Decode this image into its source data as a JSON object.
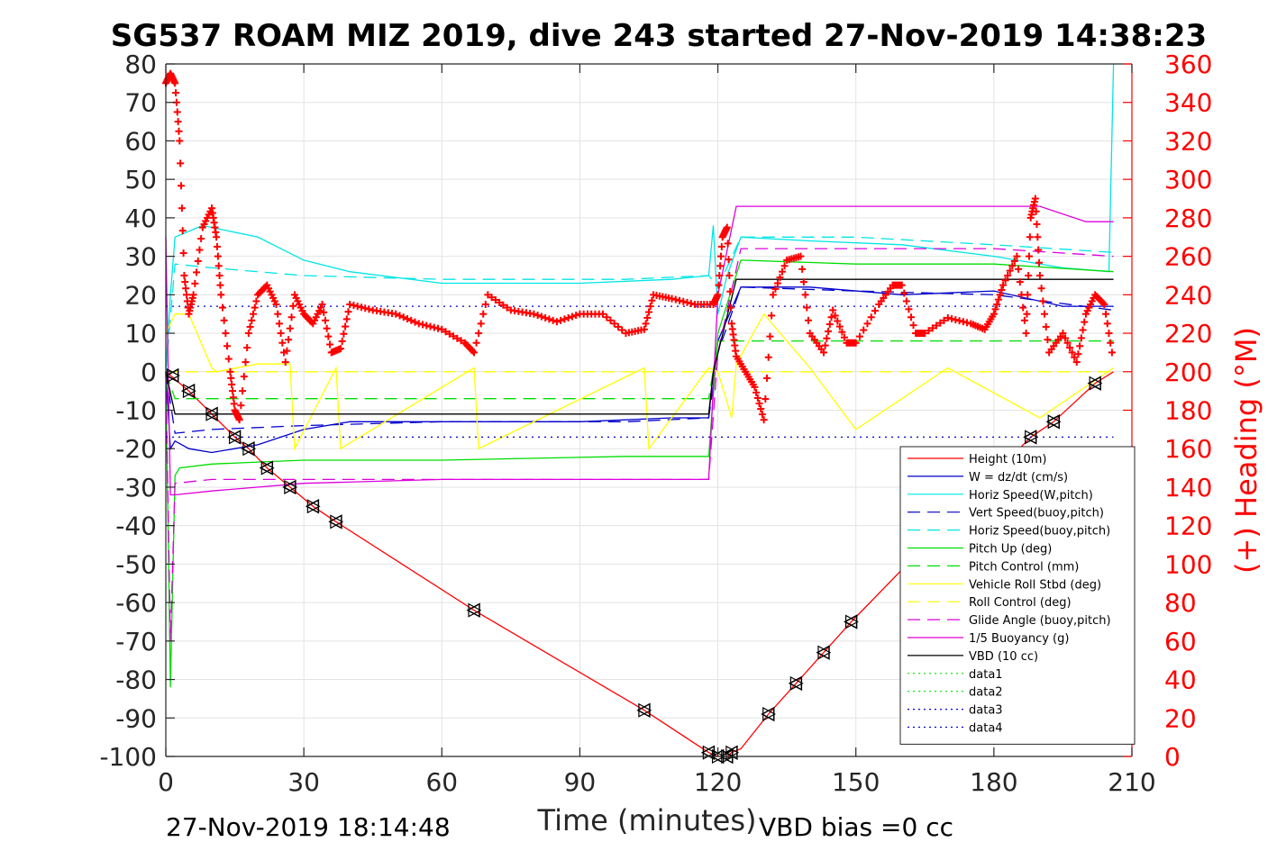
{
  "chart_data": {
    "type": "line",
    "title": "SG537 ROAM MIZ 2019, dive 243 started 27-Nov-2019 14:38:23",
    "xlabel": "Time (minutes)",
    "ylabel": "",
    "y2label": "(+) Heading (°M)",
    "xlim": [
      0,
      210
    ],
    "ylim": [
      -100,
      80
    ],
    "y2lim": [
      0,
      360
    ],
    "xticks": [
      0,
      30,
      60,
      90,
      120,
      150,
      180,
      210
    ],
    "yticks": [
      -100,
      -90,
      -80,
      -70,
      -60,
      -50,
      -40,
      -30,
      -20,
      -10,
      0,
      10,
      20,
      30,
      40,
      50,
      60,
      70,
      80
    ],
    "y2ticks": [
      0,
      20,
      40,
      60,
      80,
      100,
      120,
      140,
      160,
      180,
      200,
      220,
      240,
      260,
      280,
      300,
      320,
      340,
      360
    ],
    "grid": true,
    "legend_position": "bottom-right",
    "series": [
      {
        "name": "Height (10m)",
        "color": "#ff0000",
        "style": "solid",
        "x": [
          0,
          2,
          5,
          10,
          15,
          18,
          22,
          27,
          32,
          37,
          67,
          104,
          118,
          120,
          122,
          123,
          125,
          131,
          137,
          143,
          149,
          188,
          193,
          202,
          206
        ],
        "y": [
          0,
          -2,
          -5,
          -11,
          -17,
          -20,
          -25,
          -30,
          -35,
          -39,
          -62,
          -88,
          -99,
          -100,
          -100,
          -99,
          -98,
          -89,
          -81,
          -73,
          -65,
          -17,
          -13,
          -3,
          0
        ]
      },
      {
        "name": "W = dz/dt (cm/s)",
        "color": "#0000cc",
        "style": "solid",
        "x": [
          0,
          1,
          2,
          5,
          10,
          15,
          20,
          30,
          40,
          60,
          90,
          110,
          118,
          119,
          120,
          125,
          140,
          160,
          180,
          195,
          206
        ],
        "y": [
          0,
          -20,
          -18,
          -20,
          -21,
          -20,
          -19,
          -15,
          -13,
          -13,
          -13,
          -12,
          -12,
          0,
          8,
          22,
          22,
          20,
          21,
          17,
          17
        ]
      },
      {
        "name": "Horiz Speed(W,pitch)",
        "color": "#00e5e5",
        "style": "solid",
        "x": [
          0,
          1,
          2,
          4,
          8,
          12,
          20,
          30,
          40,
          60,
          90,
          110,
          118,
          119,
          120,
          122,
          125,
          140,
          160,
          180,
          195,
          205,
          206
        ],
        "y": [
          0,
          20,
          35,
          36,
          38,
          37,
          35,
          29,
          26,
          23,
          23,
          24,
          25,
          38,
          15,
          25,
          35,
          34,
          33,
          30,
          27,
          26,
          80
        ]
      },
      {
        "name": "Vert Speed(buoy,pitch)",
        "color": "#0000cc",
        "style": "dashed",
        "x": [
          0,
          2,
          10,
          30,
          60,
          100,
          118,
          120,
          125,
          150,
          180,
          206
        ],
        "y": [
          0,
          -16,
          -15,
          -14,
          -13,
          -13,
          -12,
          5,
          22,
          21,
          20,
          16
        ]
      },
      {
        "name": "Horiz Speed(buoy,pitch)",
        "color": "#00e5e5",
        "style": "dashed",
        "x": [
          0,
          2,
          10,
          30,
          60,
          100,
          118,
          120,
          125,
          150,
          180,
          206
        ],
        "y": [
          0,
          28,
          27,
          25,
          24,
          24,
          25,
          22,
          35,
          35,
          33,
          31
        ]
      },
      {
        "name": "Pitch Up (deg)",
        "color": "#00dd00",
        "style": "solid",
        "x": [
          0,
          1,
          2,
          3,
          10,
          30,
          60,
          100,
          118,
          120,
          125,
          150,
          180,
          206
        ],
        "y": [
          0,
          -82,
          -27,
          -25,
          -24,
          -23,
          -23,
          -22,
          -22,
          10,
          29,
          28,
          28,
          26
        ]
      },
      {
        "name": "Pitch Control (mm)",
        "color": "#00dd00",
        "style": "dashed",
        "x": [
          0,
          2,
          118,
          120,
          206
        ],
        "y": [
          0,
          -7,
          -7,
          8,
          8
        ]
      },
      {
        "name": "Vehicle Roll Stbd (deg)",
        "color": "#ffff00",
        "style": "solid",
        "x": [
          0,
          2,
          5,
          10,
          11,
          20,
          27,
          28,
          37,
          38,
          67,
          68,
          104,
          105,
          118,
          120,
          123,
          124,
          130,
          140,
          150,
          170,
          190,
          206
        ],
        "y": [
          10,
          15,
          15,
          1,
          0,
          2,
          2,
          -20,
          1,
          -20,
          1,
          -20,
          1,
          -20,
          1,
          0,
          -12,
          2,
          15,
          1,
          -15,
          1,
          -12,
          1
        ]
      },
      {
        "name": "Roll Control (deg)",
        "color": "#ffff00",
        "style": "dashed",
        "x": [
          0,
          206
        ],
        "y": [
          0,
          0
        ]
      },
      {
        "name": "Glide Angle (buoy,pitch)",
        "color": "#dd00dd",
        "style": "dashed",
        "x": [
          0,
          1,
          2,
          10,
          30,
          60,
          100,
          118,
          120,
          125,
          150,
          180,
          206
        ],
        "y": [
          0,
          -70,
          -29,
          -28,
          -28,
          -28,
          -28,
          -28,
          5,
          32,
          32,
          32,
          30
        ]
      },
      {
        "name": "1/5 Buoyancy (g)",
        "color": "#dd00dd",
        "style": "solid",
        "x": [
          0,
          1,
          2,
          10,
          30,
          60,
          100,
          118,
          120,
          124,
          150,
          190,
          200,
          206
        ],
        "y": [
          35,
          -32,
          -32,
          -31,
          -29,
          -28,
          -28,
          -28,
          20,
          43,
          43,
          43,
          39,
          39
        ]
      },
      {
        "name": "VBD (10 cc)",
        "color": "#000000",
        "style": "solid",
        "x": [
          0,
          2,
          10,
          118,
          119,
          124,
          206
        ],
        "y": [
          0,
          -11,
          -11,
          -11,
          0,
          24,
          24
        ]
      },
      {
        "name": "data1",
        "color": "#00dd00",
        "style": "dotted",
        "x": [],
        "y": []
      },
      {
        "name": "data2",
        "color": "#00dd00",
        "style": "dotted",
        "x": [],
        "y": []
      },
      {
        "name": "data3",
        "color": "#0000cc",
        "style": "dotted",
        "x": [
          0,
          206
        ],
        "y": [
          17,
          17
        ]
      },
      {
        "name": "data4",
        "color": "#0000cc",
        "style": "dotted",
        "x": [
          0,
          206
        ],
        "y": [
          -17,
          -17
        ]
      }
    ],
    "heading": {
      "color": "#ff0000",
      "marker": "+",
      "axis": "right",
      "x": [
        0,
        1,
        2,
        3,
        4,
        5,
        6,
        8,
        10,
        11,
        12,
        14,
        15,
        16,
        18,
        20,
        22,
        24,
        26,
        28,
        30,
        32,
        34,
        36,
        38,
        40,
        45,
        50,
        55,
        60,
        65,
        67,
        70,
        75,
        80,
        85,
        90,
        95,
        100,
        104,
        106,
        110,
        115,
        119,
        120,
        121,
        122,
        123,
        124,
        126,
        128,
        130,
        132,
        135,
        138,
        140,
        143,
        145,
        148,
        150,
        155,
        158,
        160,
        163,
        165,
        170,
        175,
        178,
        180,
        182,
        185,
        187,
        188,
        189,
        190,
        192,
        195,
        198,
        200,
        202,
        204,
        206
      ],
      "y": [
        350,
        355,
        350,
        320,
        250,
        230,
        240,
        275,
        285,
        270,
        240,
        200,
        180,
        175,
        220,
        240,
        245,
        235,
        205,
        240,
        230,
        225,
        235,
        210,
        212,
        235,
        232,
        230,
        225,
        222,
        215,
        210,
        240,
        232,
        230,
        226,
        230,
        230,
        220,
        222,
        240,
        238,
        235,
        235,
        240,
        270,
        275,
        225,
        208,
        200,
        192,
        175,
        240,
        258,
        260,
        220,
        210,
        232,
        215,
        215,
        235,
        245,
        245,
        220,
        220,
        228,
        225,
        222,
        230,
        245,
        260,
        220,
        280,
        290,
        250,
        210,
        220,
        205,
        230,
        240,
        235,
        205
      ]
    },
    "triangle_markers": {
      "x": [
        1.5,
        5,
        10,
        15,
        18,
        22,
        27,
        32,
        37,
        67,
        104,
        118,
        120,
        122,
        123,
        131,
        137,
        143,
        149,
        188,
        193,
        202
      ],
      "y": [
        -1,
        -5,
        -11,
        -17,
        -20,
        -25,
        -30,
        -35,
        -39,
        -62,
        -88,
        -99,
        -100,
        -100,
        -99,
        -89,
        -81,
        -73,
        -65,
        -17,
        -13,
        -3
      ]
    },
    "footer_left": "27-Nov-2019 18:14:48",
    "footer_right": "VBD bias =0 cc"
  }
}
